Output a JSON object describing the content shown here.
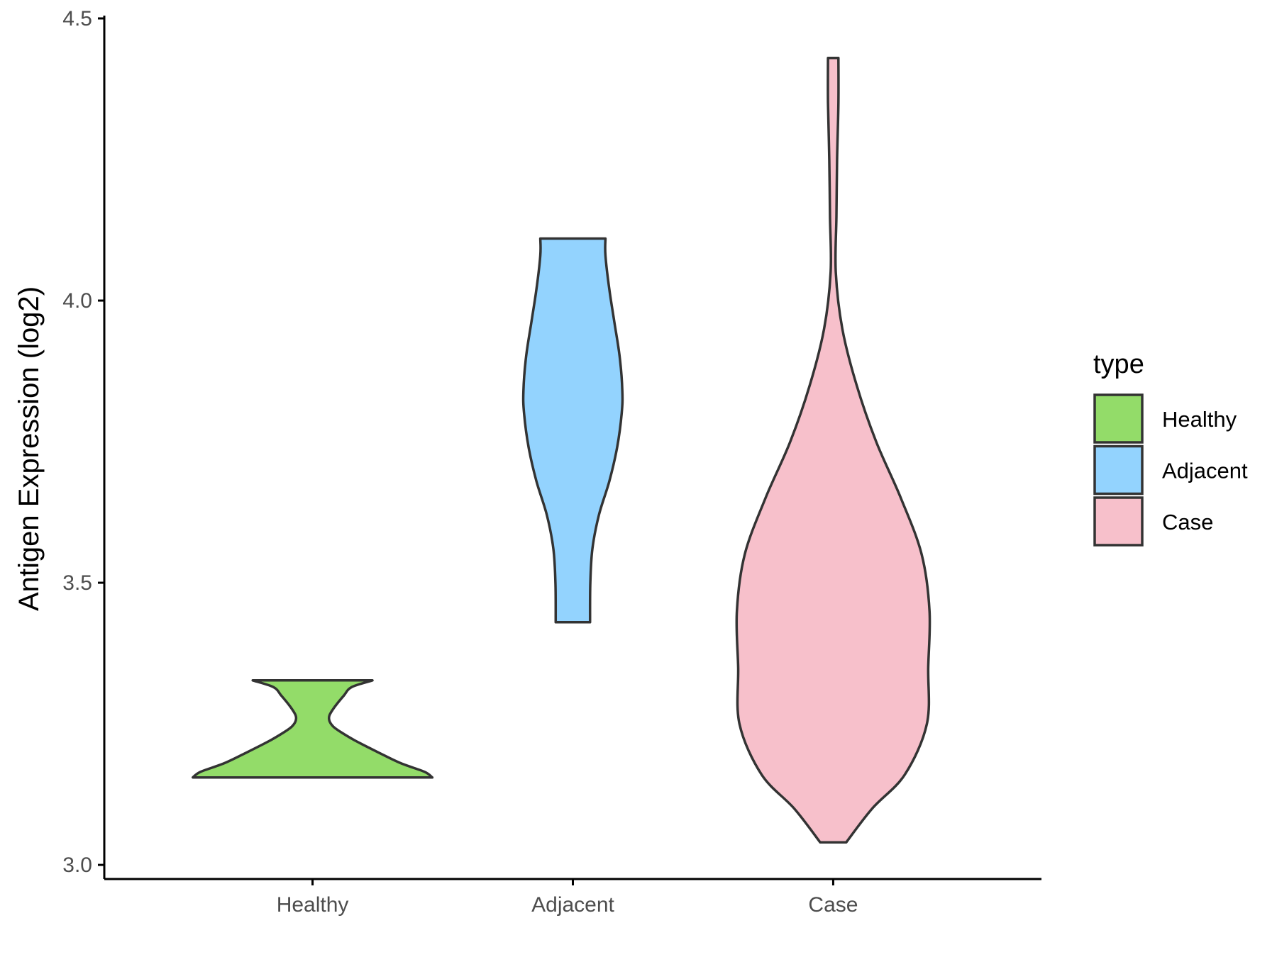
{
  "chart_data": {
    "type": "violin",
    "title": "",
    "xlabel": "",
    "ylabel": "Antigen Expression (log2)",
    "ylim": [
      2.975,
      4.505
    ],
    "yticks": [
      3.0,
      3.5,
      4.0,
      4.5
    ],
    "ytick_labels": [
      "3.0",
      "3.5",
      "4.0",
      "4.5"
    ],
    "categories": [
      "Healthy",
      "Adjacent",
      "Case"
    ],
    "grid": false,
    "legend": {
      "title": "type",
      "placement": "right",
      "entries": [
        "Healthy",
        "Adjacent",
        "Case"
      ]
    },
    "series": [
      {
        "category": "Healthy",
        "color": "#93dc69",
        "min": 3.155,
        "max": 3.327,
        "profile": [
          [
            3.155,
            0.92
          ],
          [
            3.165,
            0.86
          ],
          [
            3.18,
            0.68
          ],
          [
            3.2,
            0.5
          ],
          [
            3.22,
            0.33
          ],
          [
            3.235,
            0.22
          ],
          [
            3.245,
            0.16
          ],
          [
            3.255,
            0.13
          ],
          [
            3.265,
            0.13
          ],
          [
            3.28,
            0.17
          ],
          [
            3.3,
            0.24
          ],
          [
            3.315,
            0.3
          ],
          [
            3.327,
            0.46
          ]
        ]
      },
      {
        "category": "Adjacent",
        "color": "#93d3fe",
        "min": 3.43,
        "max": 4.11,
        "profile": [
          [
            3.43,
            0.132
          ],
          [
            3.5,
            0.134
          ],
          [
            3.56,
            0.15
          ],
          [
            3.62,
            0.2
          ],
          [
            3.68,
            0.28
          ],
          [
            3.74,
            0.34
          ],
          [
            3.8,
            0.375
          ],
          [
            3.84,
            0.38
          ],
          [
            3.9,
            0.36
          ],
          [
            3.96,
            0.32
          ],
          [
            4.02,
            0.28
          ],
          [
            4.08,
            0.25
          ],
          [
            4.11,
            0.25
          ]
        ]
      },
      {
        "category": "Case",
        "color": "#f7c0cb",
        "min": 3.04,
        "max": 4.43,
        "profile": [
          [
            3.04,
            0.1
          ],
          [
            3.1,
            0.3
          ],
          [
            3.16,
            0.55
          ],
          [
            3.25,
            0.72
          ],
          [
            3.35,
            0.73
          ],
          [
            3.45,
            0.74
          ],
          [
            3.55,
            0.68
          ],
          [
            3.65,
            0.52
          ],
          [
            3.75,
            0.33
          ],
          [
            3.85,
            0.18
          ],
          [
            3.95,
            0.07
          ],
          [
            4.05,
            0.02
          ],
          [
            4.15,
            0.025
          ],
          [
            4.25,
            0.03
          ],
          [
            4.35,
            0.04
          ],
          [
            4.43,
            0.04
          ]
        ]
      }
    ]
  }
}
